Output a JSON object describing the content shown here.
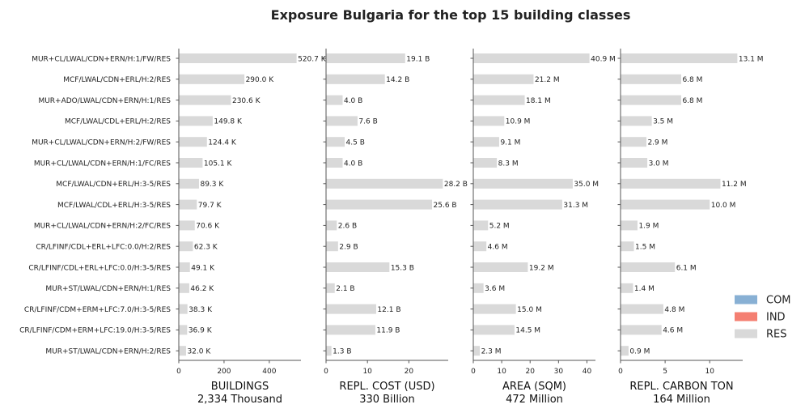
{
  "title": "Exposure Bulgaria for the top 15 building classes",
  "categories": [
    "MUR+CL/LWAL/CDN+ERN/H:1/FW/RES",
    "MCF/LWAL/CDN+ERL/H:2/RES",
    "MUR+ADO/LWAL/CDN+ERN/H:1/RES",
    "MCF/LWAL/CDL+ERL/H:2/RES",
    "MUR+CL/LWAL/CDN+ERN/H:2/FW/RES",
    "MUR+CL/LWAL/CDN+ERN/H:1/FC/RES",
    "MCF/LWAL/CDN+ERL/H:3-5/RES",
    "MCF/LWAL/CDL+ERL/H:3-5/RES",
    "MUR+CL/LWAL/CDN+ERN/H:2/FC/RES",
    "CR/LFINF/CDL+ERL+LFC:0.0/H:2/RES",
    "CR/LFINF/CDL+ERL+LFC:0.0/H:3-5/RES",
    "MUR+ST/LWAL/CDN+ERN/H:1/RES",
    "CR/LFINF/CDM+ERM+LFC:7.0/H:3-5/RES",
    "CR/LFINF/CDM+ERM+LFC:19.0/H:3-5/RES",
    "MUR+ST/LWAL/CDN+ERN/H:2/RES"
  ],
  "legend": [
    {
      "label": "COM",
      "color": "#88b0d4"
    },
    {
      "label": "IND",
      "color": "#f47f72"
    },
    {
      "label": "RES",
      "color": "#d9d9d9"
    }
  ],
  "colors": {
    "bar": "#d9d9d9",
    "axis": "#555555"
  },
  "chart_data": [
    {
      "type": "bar",
      "orientation": "horizontal",
      "xlabel": "BUILDINGS",
      "total_label": "2,334 Thousand",
      "xlim": [
        0,
        540
      ],
      "xticks": [
        0,
        200,
        400
      ],
      "values": [
        520.7,
        290.0,
        230.6,
        149.8,
        124.4,
        105.1,
        89.3,
        79.7,
        70.6,
        62.3,
        49.1,
        46.2,
        38.3,
        36.9,
        32.0
      ],
      "labels": [
        "520.7 K",
        "290.0 K",
        "230.6 K",
        "149.8 K",
        "124.4 K",
        "105.1 K",
        "89.3 K",
        "79.7 K",
        "70.6 K",
        "62.3 K",
        "49.1 K",
        "46.2 K",
        "38.3 K",
        "36.9 K",
        "32.0 K"
      ]
    },
    {
      "type": "bar",
      "orientation": "horizontal",
      "xlabel": "REPL. COST (USD)",
      "total_label": "330 Billion",
      "xlim": [
        0,
        29.5
      ],
      "xticks": [
        0,
        10,
        20
      ],
      "values": [
        19.1,
        14.2,
        4.0,
        7.6,
        4.5,
        4.0,
        28.2,
        25.6,
        2.6,
        2.9,
        15.3,
        2.1,
        12.1,
        11.9,
        1.3
      ],
      "labels": [
        "19.1 B",
        "14.2 B",
        "4.0 B",
        "7.6 B",
        "4.5 B",
        "4.0 B",
        "28.2 B",
        "25.6 B",
        "2.6 B",
        "2.9 B",
        "15.3 B",
        "2.1 B",
        "12.1 B",
        "11.9 B",
        "1.3 B"
      ]
    },
    {
      "type": "bar",
      "orientation": "horizontal",
      "xlabel": "AREA (SQM)",
      "total_label": "472 Million",
      "xlim": [
        0,
        43
      ],
      "xticks": [
        0,
        10,
        20,
        30,
        40
      ],
      "values": [
        40.9,
        21.2,
        18.1,
        10.9,
        9.1,
        8.3,
        35.0,
        31.3,
        5.2,
        4.6,
        19.2,
        3.6,
        15.0,
        14.5,
        2.3
      ],
      "labels": [
        "40.9 M",
        "21.2 M",
        "18.1 M",
        "10.9 M",
        "9.1 M",
        "8.3 M",
        "35.0 M",
        "31.3 M",
        "5.2 M",
        "4.6 M",
        "19.2 M",
        "3.6 M",
        "15.0 M",
        "14.5 M",
        "2.3 M"
      ]
    },
    {
      "type": "bar",
      "orientation": "horizontal",
      "xlabel": "REPL. CARBON TON",
      "total_label": "164 Million",
      "xlim": [
        0,
        13.7
      ],
      "xticks": [
        0,
        5,
        10
      ],
      "values": [
        13.1,
        6.8,
        6.8,
        3.5,
        2.9,
        3.0,
        11.2,
        10.0,
        1.9,
        1.5,
        6.1,
        1.4,
        4.8,
        4.6,
        0.9
      ],
      "labels": [
        "13.1 M",
        "6.8 M",
        "6.8 M",
        "3.5 M",
        "2.9 M",
        "3.0 M",
        "11.2 M",
        "10.0 M",
        "1.9 M",
        "1.5 M",
        "6.1 M",
        "1.4 M",
        "4.8 M",
        "4.6 M",
        "0.9 M"
      ]
    }
  ]
}
